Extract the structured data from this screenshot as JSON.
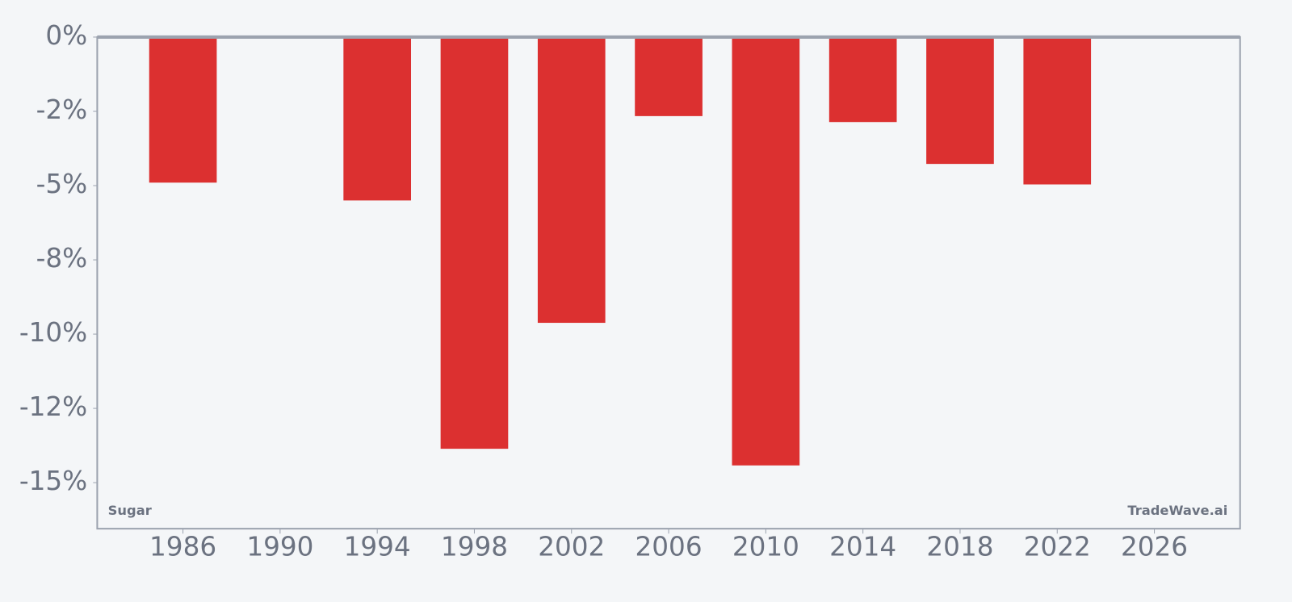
{
  "chart_data": {
    "type": "bar",
    "x": [
      1986,
      1994,
      1998,
      2002,
      2006,
      2010,
      2014,
      2018,
      2022
    ],
    "values": [
      -4.9,
      -5.5,
      -13.86,
      -9.62,
      -2.66,
      -14.42,
      -2.86,
      -4.27,
      -4.96
    ],
    "color": "#dc3030",
    "xlim": [
      1982.47,
      2029.53
    ],
    "xticks": [
      1986,
      1990,
      1994,
      1998,
      2002,
      2006,
      2010,
      2014,
      2018,
      2022,
      2026
    ],
    "ylim": [
      -16.55,
      0
    ],
    "yticks": [
      {
        "value": 0,
        "label": "0%"
      },
      {
        "value": -2.5,
        "label": "-2%"
      },
      {
        "value": -5,
        "label": "-5%"
      },
      {
        "value": -7.5,
        "label": "-8%"
      },
      {
        "value": -10,
        "label": "-10%"
      },
      {
        "value": -12.5,
        "label": "-12%"
      },
      {
        "value": -15,
        "label": "-15%"
      }
    ],
    "annotations": [
      "Sugar",
      "TradeWave.ai"
    ]
  }
}
